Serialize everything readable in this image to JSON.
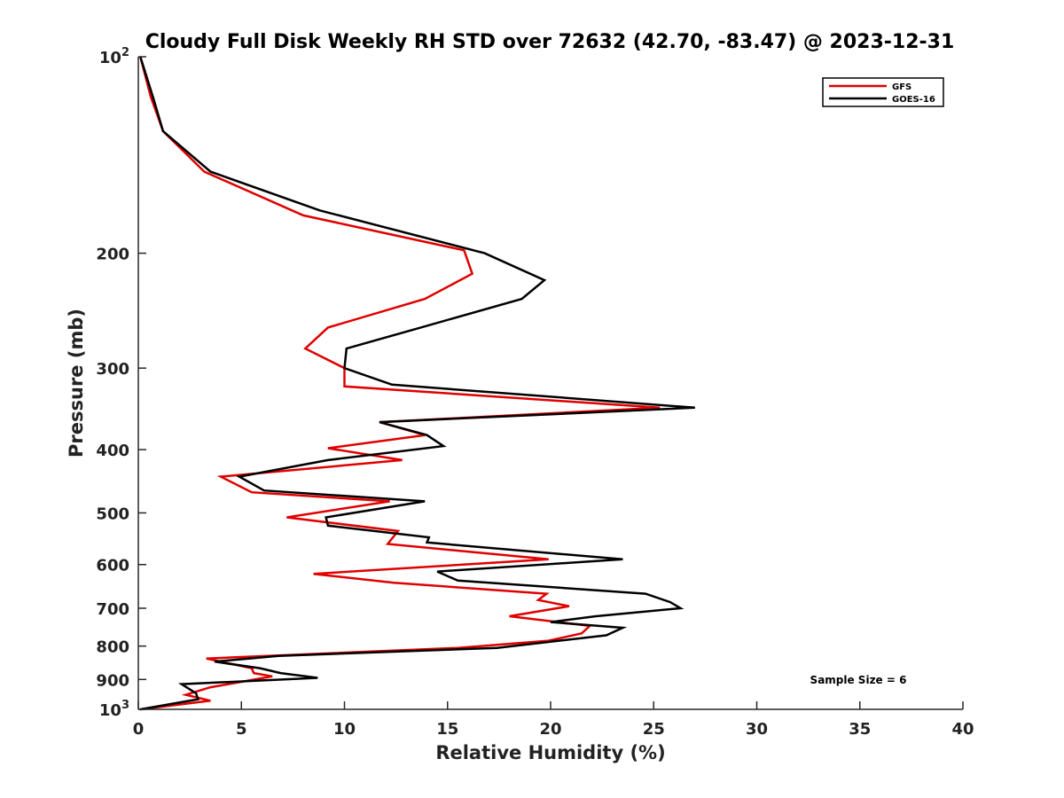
{
  "chart_data": {
    "type": "line",
    "title": "Cloudy Full Disk Weekly RH STD over 72632 (42.70, -83.47) @ 2023-12-31",
    "xlabel": "Relative Humidity (%)",
    "ylabel": "Pressure (mb)",
    "xlim": [
      0,
      40
    ],
    "ylim": [
      100,
      1000
    ],
    "yscale": "log",
    "y_reversed": true,
    "xticks": [
      0,
      5,
      10,
      15,
      20,
      25,
      30,
      35,
      40
    ],
    "xtick_labels": [
      "0",
      "5",
      "10",
      "15",
      "20",
      "25",
      "30",
      "35",
      "40"
    ],
    "yticks": [
      {
        "value": 100,
        "base": "10",
        "exp": "2"
      },
      {
        "value": 200,
        "label": "200"
      },
      {
        "value": 300,
        "label": "300"
      },
      {
        "value": 400,
        "label": "400"
      },
      {
        "value": 500,
        "label": "500"
      },
      {
        "value": 600,
        "label": "600"
      },
      {
        "value": 700,
        "label": "700"
      },
      {
        "value": 800,
        "label": "800"
      },
      {
        "value": 900,
        "label": "900"
      },
      {
        "value": 1000,
        "base": "10",
        "exp": "3"
      }
    ],
    "grid": false,
    "legend_position": "top-right",
    "annotation": "Sample Size = 6",
    "series": [
      {
        "name": "GFS",
        "color": "#e00000",
        "points": [
          [
            0.1,
            100
          ],
          [
            0.6,
            115
          ],
          [
            1.2,
            130
          ],
          [
            3.2,
            150
          ],
          [
            8.0,
            175
          ],
          [
            15.8,
            198
          ],
          [
            16.2,
            215
          ],
          [
            13.9,
            235
          ],
          [
            9.2,
            260
          ],
          [
            8.1,
            280
          ],
          [
            10.0,
            300
          ],
          [
            10.0,
            320
          ],
          [
            25.3,
            345
          ],
          [
            11.7,
            363
          ],
          [
            13.9,
            380
          ],
          [
            9.2,
            398
          ],
          [
            12.8,
            415
          ],
          [
            4.0,
            440
          ],
          [
            5.5,
            465
          ],
          [
            12.2,
            480
          ],
          [
            7.2,
            508
          ],
          [
            12.6,
            533
          ],
          [
            12.1,
            558
          ],
          [
            19.9,
            589
          ],
          [
            8.5,
            620
          ],
          [
            12.4,
            640
          ],
          [
            19.8,
            665
          ],
          [
            19.4,
            680
          ],
          [
            20.9,
            695
          ],
          [
            18.0,
            720
          ],
          [
            21.9,
            745
          ],
          [
            21.5,
            765
          ],
          [
            19.9,
            785
          ],
          [
            15.5,
            805
          ],
          [
            3.3,
            836
          ],
          [
            5.5,
            865
          ],
          [
            5.6,
            880
          ],
          [
            6.5,
            890
          ],
          [
            3.5,
            925
          ],
          [
            2.3,
            950
          ],
          [
            3.5,
            970
          ],
          [
            0.1,
            1000
          ]
        ]
      },
      {
        "name": "GOES-16",
        "color": "#000000",
        "points": [
          [
            0.1,
            100
          ],
          [
            0.7,
            115
          ],
          [
            1.2,
            130
          ],
          [
            3.5,
            150
          ],
          [
            8.8,
            172
          ],
          [
            16.8,
            200
          ],
          [
            19.7,
            220
          ],
          [
            18.6,
            235
          ],
          [
            13.7,
            260
          ],
          [
            10.1,
            280
          ],
          [
            10.0,
            300
          ],
          [
            12.3,
            318
          ],
          [
            27.0,
            345
          ],
          [
            11.7,
            363
          ],
          [
            14.0,
            380
          ],
          [
            14.8,
            395
          ],
          [
            9.2,
            415
          ],
          [
            4.9,
            440
          ],
          [
            6.1,
            462
          ],
          [
            13.9,
            480
          ],
          [
            9.1,
            508
          ],
          [
            9.2,
            523
          ],
          [
            14.1,
            545
          ],
          [
            14.0,
            555
          ],
          [
            23.5,
            589
          ],
          [
            14.5,
            615
          ],
          [
            15.5,
            635
          ],
          [
            24.6,
            665
          ],
          [
            25.8,
            685
          ],
          [
            26.3,
            700
          ],
          [
            22.2,
            720
          ],
          [
            20.0,
            735
          ],
          [
            23.5,
            750
          ],
          [
            22.7,
            770
          ],
          [
            17.4,
            805
          ],
          [
            6.8,
            828
          ],
          [
            3.7,
            845
          ],
          [
            5.9,
            865
          ],
          [
            6.9,
            880
          ],
          [
            8.7,
            895
          ],
          [
            2.1,
            915
          ],
          [
            2.8,
            945
          ],
          [
            2.9,
            965
          ],
          [
            0.1,
            1000
          ]
        ]
      }
    ]
  }
}
